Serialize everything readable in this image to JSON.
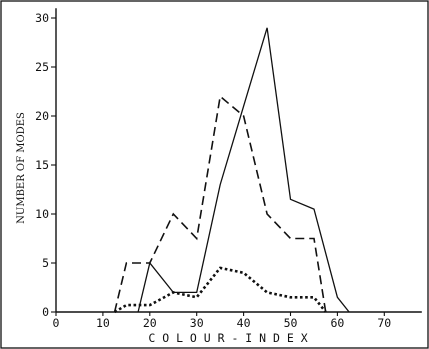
{
  "chart_data": {
    "type": "line",
    "xlabel": "C O L O U R - I N D E X",
    "ylabel": "NUMBER OF MODES",
    "xlim": [
      0,
      78
    ],
    "ylim": [
      0,
      31
    ],
    "xticks": [
      0,
      10,
      20,
      30,
      40,
      50,
      60,
      70
    ],
    "xtick_labels": [
      "0",
      "10",
      "20",
      "30",
      "40",
      "50",
      "60",
      "70"
    ],
    "yticks": [
      0,
      5,
      10,
      15,
      20,
      25,
      30
    ],
    "ytick_labels": [
      "0",
      "5",
      "10",
      "15",
      "20",
      "25",
      "30"
    ],
    "grid": false,
    "series": [
      {
        "style": "solid",
        "x": [
          17.5,
          20,
          25,
          30,
          35,
          40,
          45,
          50,
          55,
          60,
          62.5
        ],
        "y": [
          0,
          5,
          2,
          2,
          13,
          21,
          29,
          11.5,
          10.5,
          1.5,
          0
        ]
      },
      {
        "style": "dashed",
        "x": [
          12.5,
          15,
          20,
          25,
          30,
          35,
          40,
          45,
          50,
          55,
          57.5
        ],
        "y": [
          0,
          5,
          5,
          10,
          7.5,
          22,
          20,
          10,
          7.5,
          7.5,
          0
        ]
      },
      {
        "style": "dotted",
        "x": [
          12.5,
          15,
          20,
          25,
          30,
          35,
          40,
          45,
          50,
          55,
          57.5
        ],
        "y": [
          0,
          0.7,
          0.7,
          2,
          1.5,
          4.5,
          4,
          2,
          1.5,
          1.5,
          0
        ]
      }
    ]
  }
}
